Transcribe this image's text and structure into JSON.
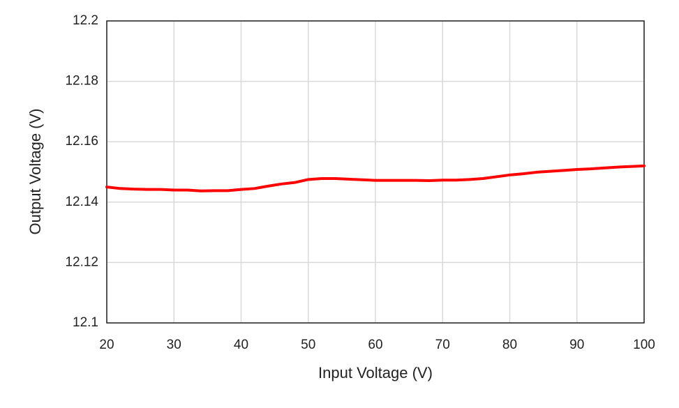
{
  "chart_data": {
    "type": "line",
    "x_label": "Input Voltage (V)",
    "y_label": "Output Voltage (V)",
    "x": [
      20,
      22,
      24,
      26,
      28,
      30,
      32,
      34,
      36,
      38,
      40,
      42,
      44,
      46,
      48,
      50,
      52,
      54,
      56,
      58,
      60,
      62,
      64,
      66,
      68,
      70,
      72,
      74,
      76,
      78,
      80,
      82,
      84,
      86,
      88,
      90,
      92,
      94,
      96,
      98,
      100
    ],
    "values": [
      12.145,
      12.1445,
      12.1443,
      12.1442,
      12.1442,
      12.144,
      12.144,
      12.1437,
      12.1438,
      12.1438,
      12.1442,
      12.1445,
      12.1453,
      12.146,
      12.1465,
      12.1475,
      12.1478,
      12.1478,
      12.1476,
      12.1474,
      12.1472,
      12.1472,
      12.1472,
      12.1472,
      12.1471,
      12.1473,
      12.1473,
      12.1475,
      12.1478,
      12.1484,
      12.149,
      12.1494,
      12.1499,
      12.1502,
      12.1505,
      12.1508,
      12.151,
      12.1513,
      12.1516,
      12.1518,
      12.152
    ],
    "color": "#ff0000",
    "xlim": [
      20,
      100
    ],
    "xticks": [
      20,
      30,
      40,
      50,
      60,
      70,
      80,
      90,
      100
    ],
    "ylim": [
      12.1,
      12.2
    ],
    "yticks": [
      12.1,
      12.12,
      12.14,
      12.16,
      12.18,
      12.2
    ],
    "grid": true
  }
}
